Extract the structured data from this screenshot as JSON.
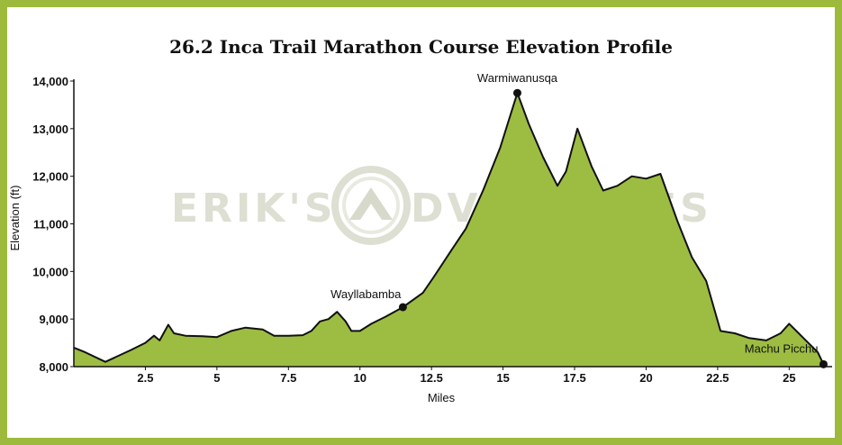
{
  "chart_data": {
    "type": "area",
    "title": "26.2 Inca Trail Marathon Course Elevation Profile",
    "xlabel": "Miles",
    "ylabel": "Elevation (ft)",
    "xlim": [
      0,
      26.5
    ],
    "ylim": [
      8000,
      14000
    ],
    "x_ticks": [
      "2.5",
      "5",
      "7.5",
      "10",
      "12.5",
      "15",
      "17.5",
      "20",
      "22.5",
      "25"
    ],
    "y_ticks": [
      "8,000",
      "9,000",
      "10,000",
      "11,000",
      "12,000",
      "13,000",
      "14,000"
    ],
    "grid": false,
    "fill_color": "#9dbd42",
    "series": [
      {
        "x": [
          0,
          0.4,
          1.1,
          2.0,
          2.5,
          2.8,
          3.0,
          3.3,
          3.5,
          3.9,
          4.5,
          5.0,
          5.5,
          6.0,
          6.6,
          7.0,
          7.5,
          8.0,
          8.3,
          8.6,
          8.9,
          9.2,
          9.5,
          9.7,
          10.0,
          10.4,
          10.9,
          11.5,
          12.2,
          12.6,
          13.2,
          13.7,
          14.3,
          14.9,
          15.5,
          15.9,
          16.4,
          16.9,
          17.2,
          17.6,
          18.1,
          18.5,
          19.0,
          19.5,
          20.0,
          20.5,
          21.1,
          21.6,
          22.1,
          22.6,
          23.1,
          23.6,
          24.2,
          24.7,
          25.0,
          25.5,
          26.0,
          26.2
        ],
        "y": [
          8400,
          8300,
          8100,
          8350,
          8500,
          8650,
          8550,
          8880,
          8700,
          8650,
          8640,
          8620,
          8750,
          8820,
          8780,
          8650,
          8650,
          8660,
          8750,
          8950,
          9000,
          9150,
          8950,
          8750,
          8750,
          8900,
          9050,
          9250,
          9550,
          9900,
          10450,
          10900,
          11700,
          12600,
          13750,
          13100,
          12400,
          11800,
          12100,
          13000,
          12200,
          11700,
          11800,
          12000,
          11950,
          12050,
          11050,
          10300,
          9800,
          8750,
          8700,
          8600,
          8550,
          8700,
          8900,
          8600,
          8300,
          8050
        ]
      }
    ],
    "annotations": [
      {
        "label": "Wayllabamba",
        "x": 11.5,
        "y": 9250
      },
      {
        "label": "Warmiwanusqa",
        "x": 15.5,
        "y": 13750
      },
      {
        "label": "Machu Picchu",
        "x": 26.2,
        "y": 8050
      }
    ]
  },
  "watermark": {
    "left_text": "ERIK'S",
    "right_text": "DVENTURES"
  }
}
